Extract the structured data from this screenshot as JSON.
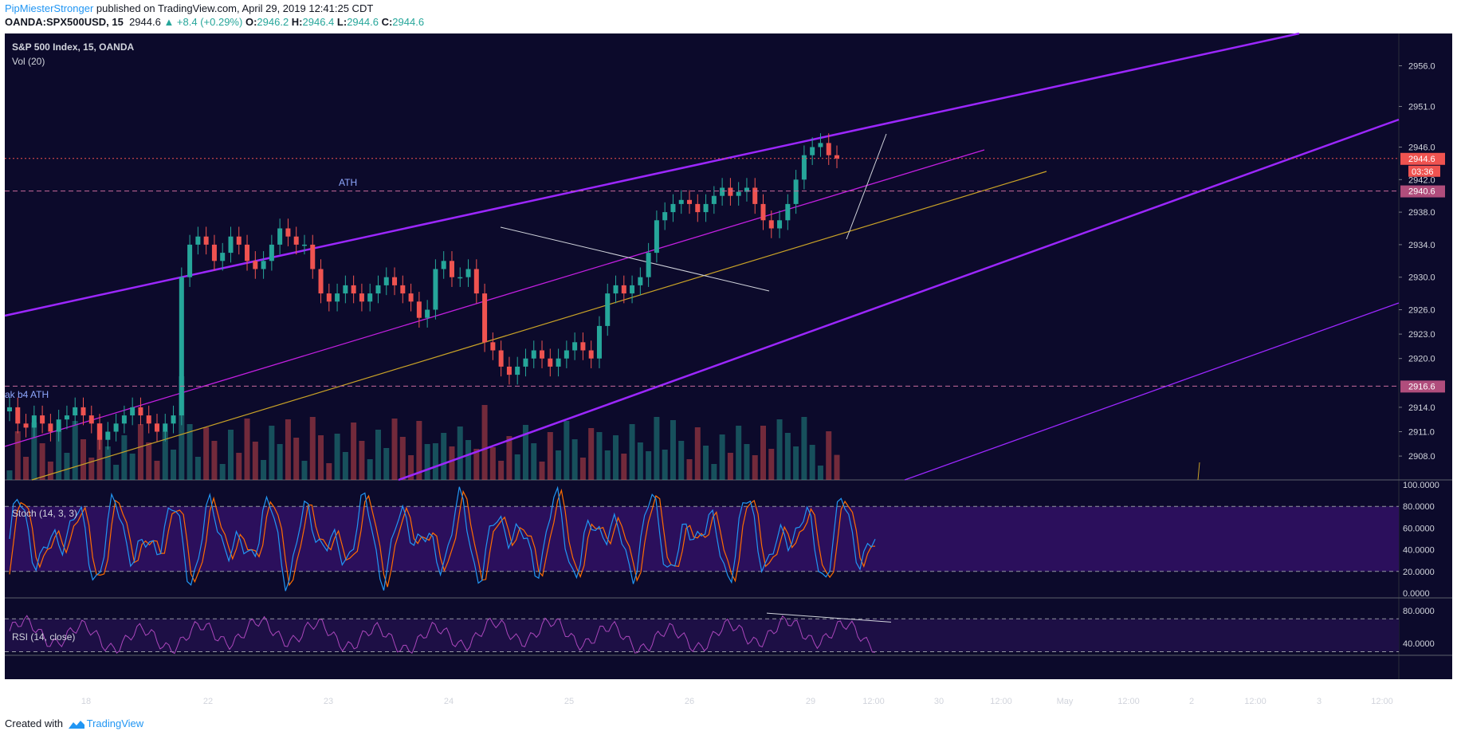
{
  "header": {
    "author": "PipMiesterStronger",
    "published": "published on TradingView.com, April 29, 2019 12:41:25 CDT",
    "symbol": "OANDA:SPX500USD, 15",
    "last": "2944.6",
    "change": "▲ +8.4 (+0.29%)",
    "o_label": "O:",
    "o": "2946.2",
    "h_label": "H:",
    "h": "2946.4",
    "l_label": "L:",
    "l": "2944.6",
    "c_label": "C:",
    "c": "2944.6"
  },
  "footer": {
    "created_with": "Created with",
    "brand": "TradingView"
  },
  "colors": {
    "background": "#0c0a2b",
    "up": "#26a69a",
    "down": "#ef5350",
    "channel": "#9c27ff",
    "trend_yellow": "#c9a227",
    "stoch_k": "#2196f3",
    "stoch_d": "#ff6d00",
    "rsi": "#ab47bc"
  },
  "chart_data": {
    "type": "candlestick",
    "title": "S&P 500 Index, 15, OANDA",
    "volume_label": "Vol (20)",
    "x_ticks": [
      "18",
      "22",
      "23",
      "24",
      "25",
      "26",
      "29",
      "12:00",
      "30",
      "12:00",
      "May",
      "12:00",
      "2",
      "12:00",
      "3",
      "12:00"
    ],
    "price_axis": {
      "ticks": [
        "2956.0",
        "2951.0",
        "2946.0",
        "2942.0",
        "2938.0",
        "2934.0",
        "2930.0",
        "2926.0",
        "2923.0",
        "2920.0",
        "2914.0",
        "2911.0",
        "2908.0"
      ],
      "last_price": "2944.6",
      "countdown": "03:36",
      "ath_level": "2940.6",
      "level_2": "2916.6"
    },
    "annotations": [
      "ATH",
      "ak b4 ATH"
    ],
    "candles_approx": [
      2914,
      2912,
      2911.5,
      2913,
      2912,
      2911,
      2912.5,
      2913,
      2914,
      2913,
      2912,
      2910,
      2911,
      2912,
      2913,
      2914,
      2913,
      2912,
      2911,
      2912,
      2913,
      2930,
      2934,
      2935,
      2934,
      2932,
      2933,
      2935,
      2934,
      2932,
      2931,
      2932,
      2934,
      2936,
      2935,
      2934,
      2934,
      2931,
      2928,
      2927,
      2928,
      2929,
      2928,
      2927,
      2928,
      2929,
      2930,
      2929,
      2928,
      2927,
      2925,
      2926,
      2931,
      2932,
      2930,
      2930,
      2931,
      2928,
      2922,
      2921,
      2919,
      2918,
      2919,
      2920,
      2921,
      2920,
      2919,
      2920,
      2921,
      2922,
      2921,
      2920,
      2924,
      2928,
      2929,
      2928,
      2929,
      2930,
      2933,
      2937,
      2938,
      2939,
      2939.5,
      2939,
      2938,
      2939,
      2940,
      2941,
      2940,
      2940.5,
      2941,
      2939,
      2937,
      2936,
      2937,
      2939,
      2942,
      2945,
      2946,
      2946.5,
      2945,
      2944.6
    ],
    "indicators": [
      {
        "name": "Stoch (14, 3, 3)",
        "levels": [
          80,
          20
        ],
        "ticks": [
          "100.0000",
          "80.0000",
          "60.0000",
          "40.0000",
          "20.0000",
          "0.0000"
        ]
      },
      {
        "name": "RSI (14, close)",
        "levels": [
          70,
          30
        ],
        "ticks": [
          "80.0000",
          "40.0000"
        ]
      }
    ]
  }
}
